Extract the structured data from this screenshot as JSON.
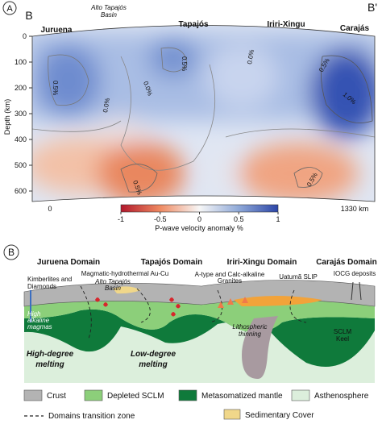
{
  "panel_a": {
    "label": "A",
    "section_start": "B",
    "section_end": "B'",
    "domains": [
      "Juruena",
      "Tapajós",
      "Iriri-Xingu",
      "Carajás"
    ],
    "basin_label": [
      "Alto Tapajós",
      "Basin"
    ],
    "y_axis_label": "Depth (km)",
    "yticks": [
      0,
      100,
      200,
      300,
      400,
      500,
      600
    ],
    "distance_ticks": [
      0,
      {
        "value": 1330,
        "label": "1330 km"
      }
    ],
    "contour_labels": [
      "0.5%",
      "0.0%",
      "0.0%",
      "0.5%",
      "0.0%",
      "0.5%",
      "1.0%",
      "0.5%",
      "0.5%"
    ],
    "colorbar": {
      "ticks": [
        -1,
        -0.5,
        0,
        0.5,
        1
      ],
      "label": "P-wave velocity anomaly %"
    }
  },
  "panel_b": {
    "label": "B",
    "domains": [
      "Juruena Domain",
      "Tapajós Domain",
      "Iriri-Xingu Domain",
      "Carajás Domain"
    ],
    "annotations": {
      "kimberlites": [
        "Kimberlites and",
        "Diamonds"
      ],
      "magmatic": "Magmatic-hydrothermal Au-Cu",
      "basin": [
        "Alto Tapajós",
        "Basin"
      ],
      "granites": [
        "A-type and Calc-alkaline",
        "Granites"
      ],
      "slip": "Uatumã SLIP",
      "iocg": "IOCG deposits",
      "alkaline": [
        "High",
        "alkaline",
        "magmas"
      ],
      "high_melting": [
        "High-degree",
        "melting"
      ],
      "low_melting": [
        "Low-degree",
        "melting"
      ],
      "thinning": [
        "Lithospheric",
        "thinning"
      ],
      "keel": [
        "SCLM",
        "Keel"
      ]
    },
    "legend": [
      "Crust",
      "Depleted SCLM",
      "Metasomatized mantle",
      "Asthenosphere",
      "Domains transition zone",
      "Sedimentary Cover"
    ]
  }
}
